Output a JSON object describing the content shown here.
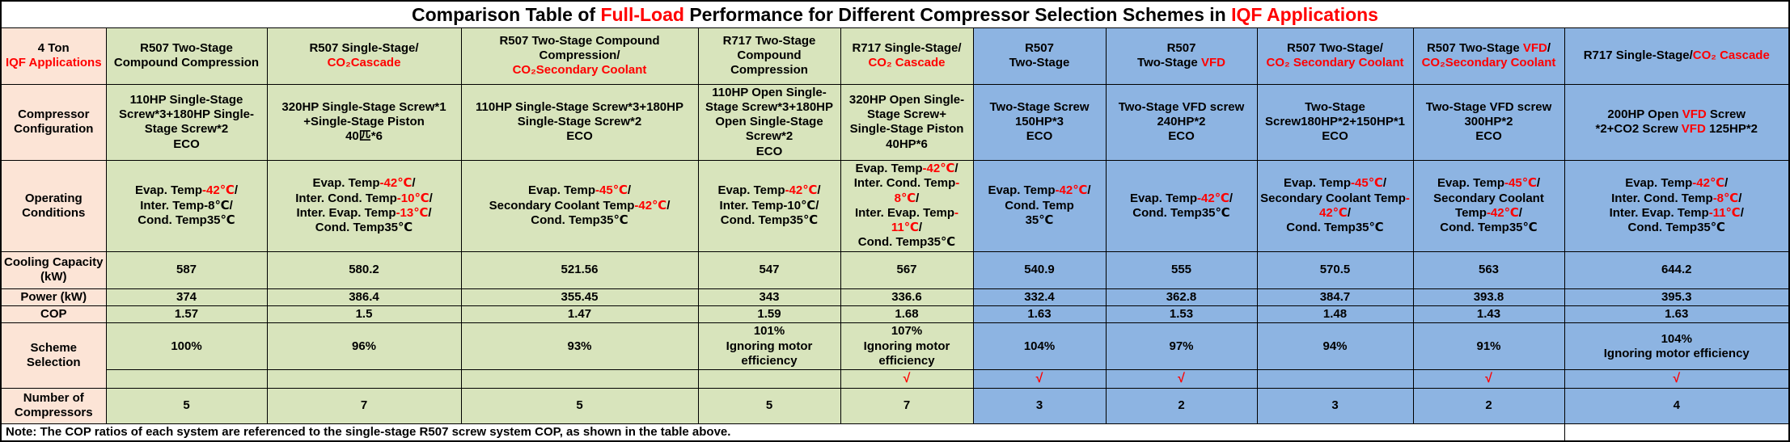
{
  "title": {
    "segments": [
      {
        "t": "Comparison Table of ",
        "red": false
      },
      {
        "t": "Full-Load",
        "red": true
      },
      {
        "t": " Performance for Different Compressor Selection Schemes in ",
        "red": false
      },
      {
        "t": "IQF Applications",
        "red": true
      }
    ]
  },
  "row_labels": {
    "app_line1": "4 Ton",
    "app_line2": "IQF Applications",
    "config": "Compressor Configuration",
    "operating": "Operating Conditions",
    "cooling": "Cooling Capacity (kW)",
    "power": "Power (kW)",
    "cop": "COP",
    "selection": "Scheme Selection",
    "compressors": "Number of Compressors"
  },
  "check_mark": "√",
  "note": "Note: The COP ratios of each system are referenced to the single-stage R507 screw system COP, as shown in the table above.",
  "colors": {
    "label_column": "#FCE4D6",
    "green_group": "#D8E4BC",
    "blue_group": "#8DB4E2",
    "highlight_red": "#FF0000",
    "border": "#000000"
  },
  "columns": [
    {
      "group": "green",
      "scheme": [
        [
          {
            "t": "R507 Two-Stage Compound Compression",
            "red": false
          }
        ]
      ],
      "config": [
        [
          {
            "t": "110HP Single-Stage Screw*3+180HP Single-Stage Screw*2",
            "red": false
          }
        ],
        [
          {
            "t": "ECO",
            "red": false
          }
        ]
      ],
      "operating": [
        [
          {
            "t": "Evap. Temp",
            "red": false
          },
          {
            "t": "-42℃",
            "red": true
          },
          {
            "t": "/",
            "red": false
          }
        ],
        [
          {
            "t": "Inter. Temp-8℃/",
            "red": false
          }
        ],
        [
          {
            "t": "Cond. Temp35℃",
            "red": false
          }
        ]
      ],
      "cooling": "587",
      "power": "374",
      "cop": "1.57",
      "selection": [
        "100%"
      ],
      "selected": false,
      "compressors": "5"
    },
    {
      "group": "green",
      "scheme": [
        [
          {
            "t": "R507 Single-Stage/",
            "red": false
          }
        ],
        [
          {
            "t": "CO₂Cascade",
            "red": true
          }
        ]
      ],
      "config": [
        [
          {
            "t": "320HP Single-Stage Screw*1",
            "red": false
          }
        ],
        [
          {
            "t": "+Single-Stage Piston",
            "red": false
          }
        ],
        [
          {
            "t": "40匹*6",
            "red": false
          }
        ]
      ],
      "operating": [
        [
          {
            "t": "Evap. Temp",
            "red": false
          },
          {
            "t": "-42℃",
            "red": true
          },
          {
            "t": "/",
            "red": false
          }
        ],
        [
          {
            "t": "Inter. Cond. Temp",
            "red": false
          },
          {
            "t": "-10℃",
            "red": true
          },
          {
            "t": "/",
            "red": false
          }
        ],
        [
          {
            "t": "Inter. Evap. Temp",
            "red": false
          },
          {
            "t": "-13℃",
            "red": true
          },
          {
            "t": "/",
            "red": false
          }
        ],
        [
          {
            "t": "Cond. Temp35℃",
            "red": false
          }
        ]
      ],
      "cooling": "580.2",
      "power": "386.4",
      "cop": "1.5",
      "selection": [
        "96%"
      ],
      "selected": false,
      "compressors": "7"
    },
    {
      "group": "green",
      "scheme": [
        [
          {
            "t": "R507 Two-Stage Compound Compression/",
            "red": false
          }
        ],
        [
          {
            "t": "CO₂Secondary Coolant",
            "red": true
          }
        ]
      ],
      "config": [
        [
          {
            "t": "110HP Single-Stage Screw*3+180HP Single-Stage Screw*2",
            "red": false
          }
        ],
        [
          {
            "t": "ECO",
            "red": false
          }
        ]
      ],
      "operating": [
        [
          {
            "t": "Evap. Temp",
            "red": false
          },
          {
            "t": "-45℃",
            "red": true
          },
          {
            "t": "/",
            "red": false
          }
        ],
        [
          {
            "t": "Secondary Coolant Temp",
            "red": false
          },
          {
            "t": "-42℃",
            "red": true
          },
          {
            "t": "/",
            "red": false
          }
        ],
        [
          {
            "t": "Cond. Temp35℃",
            "red": false
          }
        ]
      ],
      "cooling": "521.56",
      "power": "355.45",
      "cop": "1.47",
      "selection": [
        "93%"
      ],
      "selected": false,
      "compressors": "5"
    },
    {
      "group": "green",
      "scheme": [
        [
          {
            "t": "R717 Two-Stage Compound Compression",
            "red": false
          }
        ]
      ],
      "config": [
        [
          {
            "t": "110HP Open Single-Stage Screw*3+180HP Open Single-Stage Screw*2",
            "red": false
          }
        ],
        [
          {
            "t": "ECO",
            "red": false
          }
        ]
      ],
      "operating": [
        [
          {
            "t": "Evap. Temp",
            "red": false
          },
          {
            "t": "-42℃",
            "red": true
          },
          {
            "t": "/",
            "red": false
          }
        ],
        [
          {
            "t": "Inter. Temp-10℃/",
            "red": false
          }
        ],
        [
          {
            "t": "Cond. Temp35℃",
            "red": false
          }
        ]
      ],
      "cooling": "547",
      "power": "343",
      "cop": "1.59",
      "selection": [
        "101%",
        "Ignoring motor efficiency"
      ],
      "selected": false,
      "compressors": "5"
    },
    {
      "group": "green",
      "scheme": [
        [
          {
            "t": "R717 Single-Stage/",
            "red": false
          }
        ],
        [
          {
            "t": "CO₂ Cascade",
            "red": true
          }
        ]
      ],
      "config": [
        [
          {
            "t": "320HP Open Single-Stage Screw+",
            "red": false
          }
        ],
        [
          {
            "t": "Single-Stage Piston",
            "red": false
          }
        ],
        [
          {
            "t": "40HP*6",
            "red": false
          }
        ]
      ],
      "operating": [
        [
          {
            "t": "Evap. Temp",
            "red": false
          },
          {
            "t": "-42℃",
            "red": true
          },
          {
            "t": "/",
            "red": false
          }
        ],
        [
          {
            "t": "Inter. Cond. Temp",
            "red": false
          },
          {
            "t": "-8℃",
            "red": true
          },
          {
            "t": "/",
            "red": false
          }
        ],
        [
          {
            "t": "Inter. Evap. Temp",
            "red": false
          },
          {
            "t": "-11℃",
            "red": true
          },
          {
            "t": "/",
            "red": false
          }
        ],
        [
          {
            "t": "Cond. Temp35℃",
            "red": false
          }
        ]
      ],
      "cooling": "567",
      "power": "336.6",
      "cop": "1.68",
      "selection": [
        "107%",
        "Ignoring motor efficiency"
      ],
      "selected": true,
      "compressors": "7"
    },
    {
      "group": "blue",
      "scheme": [
        [
          {
            "t": "R507",
            "red": false
          }
        ],
        [
          {
            "t": "Two-Stage",
            "red": false
          }
        ]
      ],
      "config": [
        [
          {
            "t": "Two-Stage Screw",
            "red": false
          }
        ],
        [
          {
            "t": "150HP*3",
            "red": false
          }
        ],
        [
          {
            "t": "ECO",
            "red": false
          }
        ]
      ],
      "operating": [
        [
          {
            "t": "Evap. Temp",
            "red": false
          },
          {
            "t": "-42℃",
            "red": true
          },
          {
            "t": "/",
            "red": false
          }
        ],
        [
          {
            "t": "Cond. Temp",
            "red": false
          }
        ],
        [
          {
            "t": "35℃",
            "red": false
          }
        ]
      ],
      "cooling": "540.9",
      "power": "332.4",
      "cop": "1.63",
      "selection": [
        "104%"
      ],
      "selected": true,
      "compressors": "3"
    },
    {
      "group": "blue",
      "scheme": [
        [
          {
            "t": "R507",
            "red": false
          }
        ],
        [
          {
            "t": "Two-Stage ",
            "red": false
          },
          {
            "t": "VFD",
            "red": true
          }
        ]
      ],
      "config": [
        [
          {
            "t": "Two-Stage VFD screw",
            "red": false
          }
        ],
        [
          {
            "t": "240HP*2",
            "red": false
          }
        ],
        [
          {
            "t": "ECO",
            "red": false
          }
        ]
      ],
      "operating": [
        [
          {
            "t": "Evap. Temp",
            "red": false
          },
          {
            "t": "-42℃",
            "red": true
          },
          {
            "t": "/",
            "red": false
          }
        ],
        [
          {
            "t": "Cond. Temp35℃",
            "red": false
          }
        ]
      ],
      "cooling": "555",
      "power": "362.8",
      "cop": "1.53",
      "selection": [
        "97%"
      ],
      "selected": true,
      "compressors": "2"
    },
    {
      "group": "blue",
      "scheme": [
        [
          {
            "t": "R507 Two-Stage/",
            "red": false
          }
        ],
        [
          {
            "t": "CO₂ Secondary Coolant",
            "red": true
          }
        ]
      ],
      "config": [
        [
          {
            "t": "Two-Stage",
            "red": false
          }
        ],
        [
          {
            "t": "Screw180HP*2+150HP*1 ECO",
            "red": false
          }
        ]
      ],
      "operating": [
        [
          {
            "t": "Evap. Temp",
            "red": false
          },
          {
            "t": "-45℃",
            "red": true
          },
          {
            "t": "/",
            "red": false
          }
        ],
        [
          {
            "t": "Secondary Coolant Temp",
            "red": false
          },
          {
            "t": "-42℃",
            "red": true
          },
          {
            "t": "/",
            "red": false
          }
        ],
        [
          {
            "t": "Cond. Temp35℃",
            "red": false
          }
        ]
      ],
      "cooling": "570.5",
      "power": "384.7",
      "cop": "1.48",
      "selection": [
        "94%"
      ],
      "selected": false,
      "compressors": "3"
    },
    {
      "group": "blue",
      "scheme": [
        [
          {
            "t": "R507 Two-Stage ",
            "red": false
          },
          {
            "t": "VFD",
            "red": true
          },
          {
            "t": "/",
            "red": false
          }
        ],
        [
          {
            "t": "CO₂Secondary Coolant",
            "red": true
          }
        ]
      ],
      "config": [
        [
          {
            "t": "Two-Stage VFD screw",
            "red": false
          }
        ],
        [
          {
            "t": "300HP*2",
            "red": false
          }
        ],
        [
          {
            "t": "ECO",
            "red": false
          }
        ]
      ],
      "operating": [
        [
          {
            "t": "Evap. Temp",
            "red": false
          },
          {
            "t": "-45℃",
            "red": true
          },
          {
            "t": "/",
            "red": false
          }
        ],
        [
          {
            "t": "Secondary Coolant Temp",
            "red": false
          },
          {
            "t": "-42℃",
            "red": true
          },
          {
            "t": "/",
            "red": false
          }
        ],
        [
          {
            "t": "Cond. Temp35℃",
            "red": false
          }
        ]
      ],
      "cooling": "563",
      "power": "393.8",
      "cop": "1.43",
      "selection": [
        "91%"
      ],
      "selected": true,
      "compressors": "2"
    },
    {
      "group": "blue",
      "scheme": [
        [
          {
            "t": "R717 Single-Stage/",
            "red": false
          },
          {
            "t": "CO₂ Cascade",
            "red": true
          }
        ]
      ],
      "config": [
        [
          {
            "t": "200HP Open ",
            "red": false
          },
          {
            "t": "VFD",
            "red": true
          },
          {
            "t": " Screw",
            "red": false
          }
        ],
        [
          {
            "t": "*2+CO2 Screw ",
            "red": false
          },
          {
            "t": "VFD",
            "red": true
          },
          {
            "t": " 125HP*2",
            "red": false
          }
        ]
      ],
      "operating": [
        [
          {
            "t": "Evap. Temp",
            "red": false
          },
          {
            "t": "-42℃",
            "red": true
          },
          {
            "t": "/",
            "red": false
          }
        ],
        [
          {
            "t": "Inter. Cond. Temp",
            "red": false
          },
          {
            "t": "-8℃",
            "red": true
          },
          {
            "t": "/",
            "red": false
          }
        ],
        [
          {
            "t": "Inter. Evap. Temp",
            "red": false
          },
          {
            "t": "-11℃",
            "red": true
          },
          {
            "t": "/",
            "red": false
          }
        ],
        [
          {
            "t": "Cond. Temp35℃",
            "red": false
          }
        ]
      ],
      "cooling": "644.2",
      "power": "395.3",
      "cop": "1.63",
      "selection": [
        "104%",
        "Ignoring motor efficiency"
      ],
      "selected": true,
      "compressors": "4"
    }
  ]
}
